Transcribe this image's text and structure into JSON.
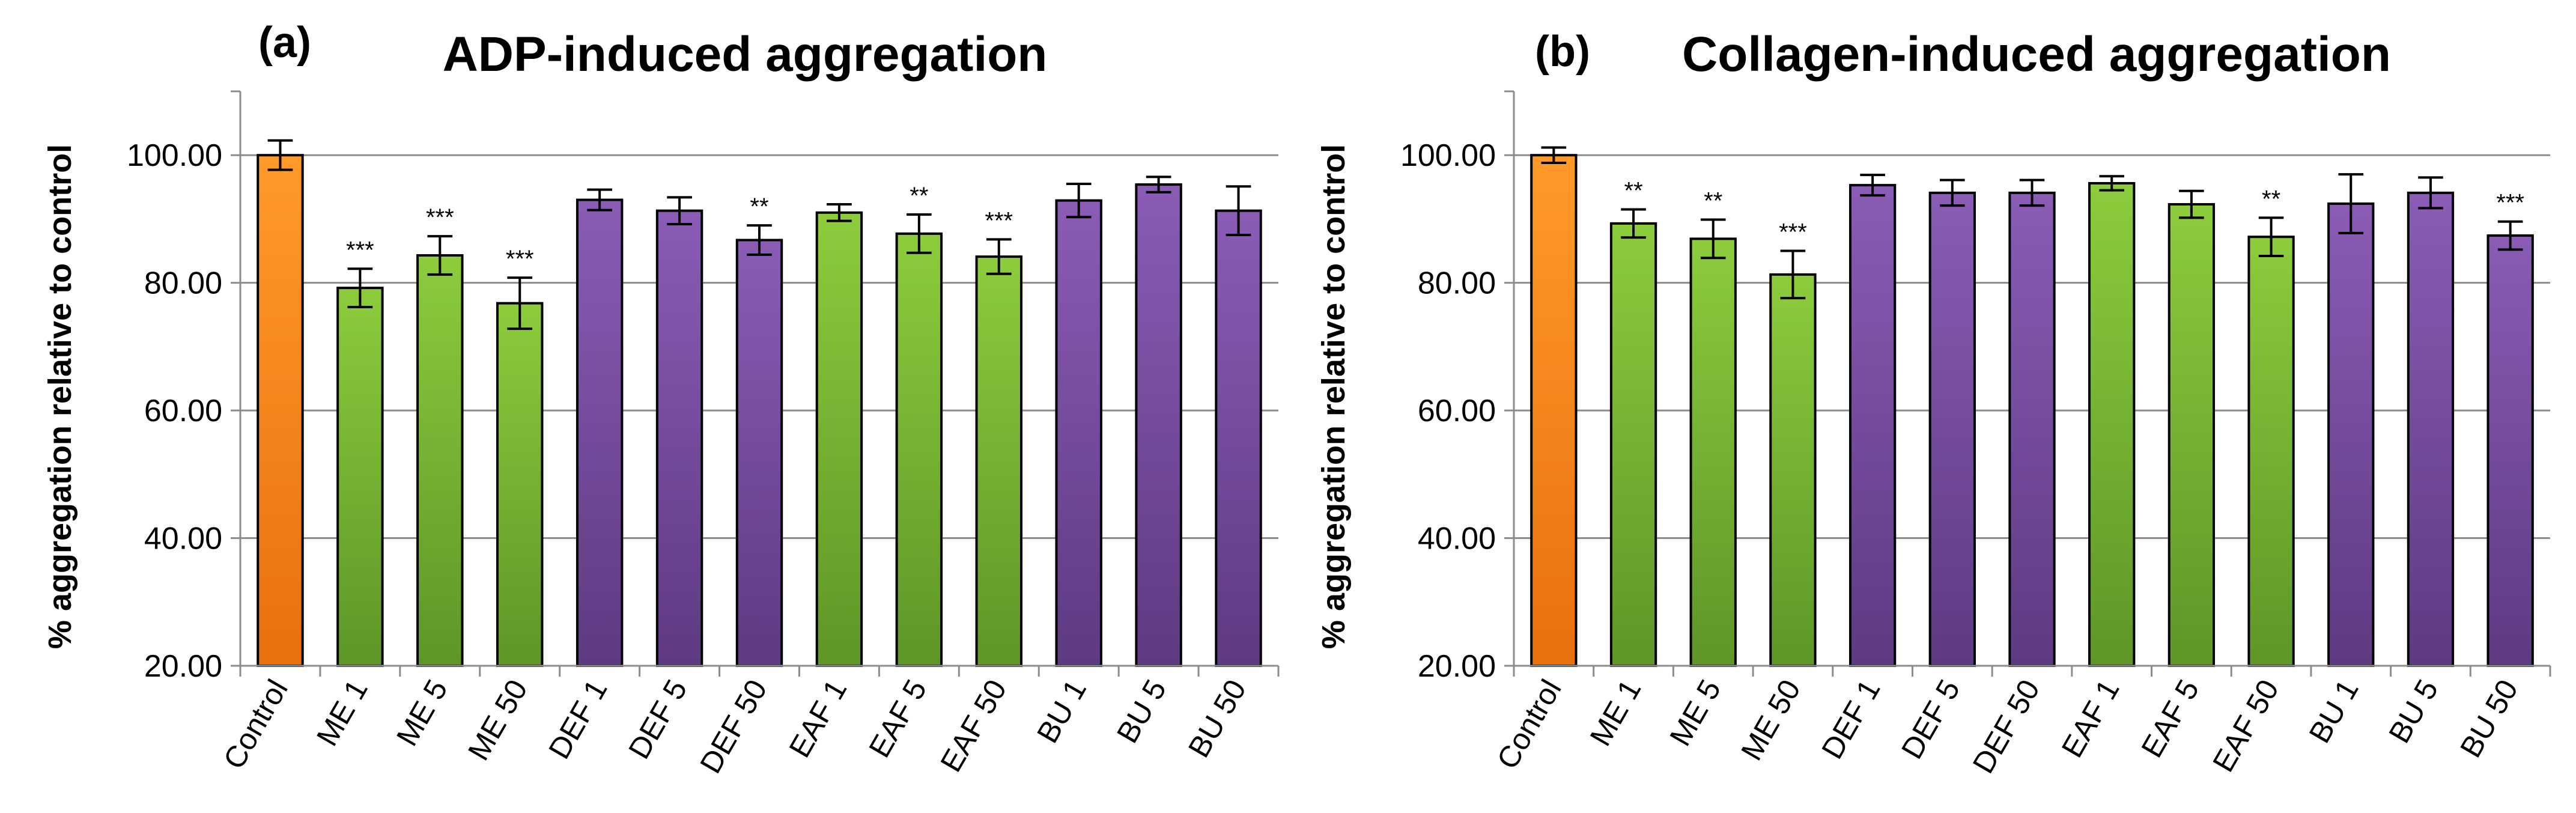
{
  "chart_data": [
    {
      "type": "bar",
      "panel_label": "(a)",
      "title": "ADP-induced aggregation",
      "xlabel": "",
      "ylabel": "% aggregation relative to control",
      "ylim": [
        20,
        110
      ],
      "yticks": [
        "20.00",
        "40.00",
        "60.00",
        "80.00",
        "100.00"
      ],
      "grid": true,
      "categories": [
        "Control",
        "ME 1",
        "ME 5",
        "ME 50",
        "DEF 1",
        "DEF 5",
        "DEF 50",
        "EAF 1",
        "EAF 5",
        "EAF 50",
        "BU 1",
        "BU 5",
        "BU 50"
      ],
      "values": [
        100.0,
        79.2,
        84.3,
        76.8,
        93.0,
        91.3,
        86.7,
        91.0,
        87.7,
        84.1,
        92.9,
        95.4,
        91.3
      ],
      "errors": [
        2.3,
        3.0,
        3.0,
        4.0,
        1.6,
        2.1,
        2.3,
        1.3,
        3.0,
        2.7,
        2.6,
        1.2,
        3.8
      ],
      "colors": [
        "#ff8c1a",
        "#8cc83c",
        "#8cc83c",
        "#8cc83c",
        "#7f50a8",
        "#7f50a8",
        "#7f50a8",
        "#8cc83c",
        "#8cc83c",
        "#8cc83c",
        "#7f50a8",
        "#7f50a8",
        "#7f50a8"
      ],
      "significance": [
        "",
        "***",
        "***",
        "***",
        "",
        "",
        "**",
        "",
        "**",
        "***",
        "",
        "",
        ""
      ]
    },
    {
      "type": "bar",
      "panel_label": "(b)",
      "title": "Collagen-induced aggregation",
      "xlabel": "",
      "ylabel": "% aggregation relative to control",
      "ylim": [
        20,
        110
      ],
      "yticks": [
        "20.00",
        "40.00",
        "60.00",
        "80.00",
        "100.00"
      ],
      "grid": true,
      "categories": [
        "Control",
        "ME 1",
        "ME 5",
        "ME 50",
        "DEF 1",
        "DEF 5",
        "DEF 50",
        "EAF 1",
        "EAF 5",
        "EAF 50",
        "BU 1",
        "BU 5",
        "BU 50"
      ],
      "values": [
        100.0,
        89.3,
        86.9,
        81.3,
        95.3,
        94.1,
        94.1,
        95.6,
        92.3,
        87.2,
        92.4,
        94.1,
        87.4
      ],
      "errors": [
        1.2,
        2.2,
        3.0,
        3.7,
        1.6,
        2.0,
        2.0,
        1.1,
        2.1,
        3.0,
        4.6,
        2.4,
        2.2
      ],
      "colors": [
        "#ff8c1a",
        "#8cc83c",
        "#8cc83c",
        "#8cc83c",
        "#7f50a8",
        "#7f50a8",
        "#7f50a8",
        "#8cc83c",
        "#8cc83c",
        "#8cc83c",
        "#7f50a8",
        "#7f50a8",
        "#7f50a8"
      ],
      "significance": [
        "",
        "**",
        "**",
        "***",
        "",
        "",
        "",
        "",
        "",
        "**",
        "",
        "",
        "***"
      ]
    }
  ]
}
